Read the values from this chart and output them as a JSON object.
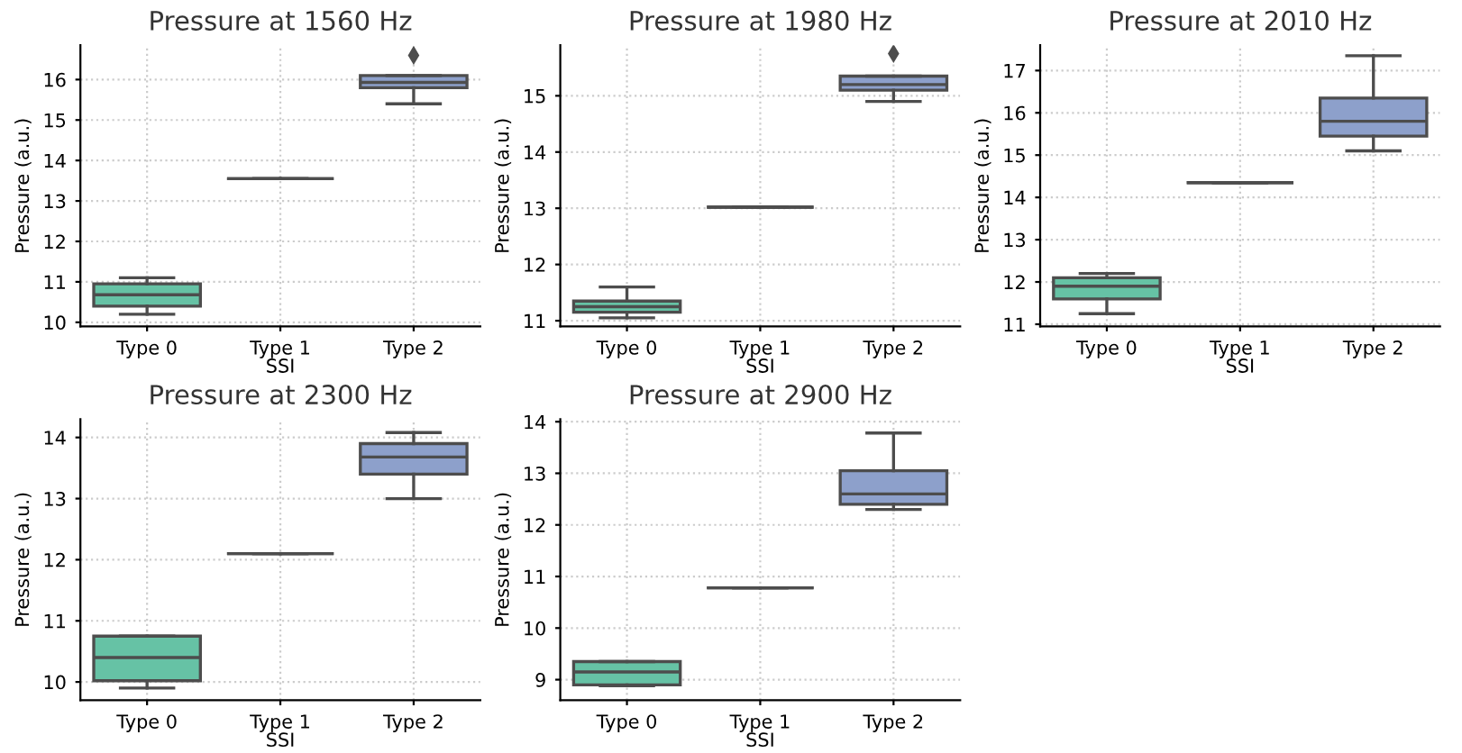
{
  "chart_data": [
    {
      "type": "box",
      "title": "Pressure at 1560 Hz",
      "xlabel": "SSI",
      "ylabel": "Pressure (a.u.)",
      "categories": [
        "Type 0",
        "Type 1",
        "Type 2"
      ],
      "colors": [
        "#66c2a5",
        null,
        "#8da0cb"
      ],
      "ylim": [
        9.9,
        16.85
      ],
      "yticks": [
        10,
        11,
        12,
        13,
        14,
        15,
        16
      ],
      "grid": true,
      "boxes": [
        {
          "low": 10.2,
          "q1": 10.4,
          "median": 10.68,
          "q3": 10.95,
          "high": 11.1
        },
        {
          "low": 13.55,
          "q1": 13.55,
          "median": 13.55,
          "q3": 13.55,
          "high": 13.55
        },
        {
          "low": 15.4,
          "q1": 15.8,
          "median": 15.93,
          "q3": 16.1,
          "high": 16.1,
          "outliers": [
            16.6
          ]
        }
      ]
    },
    {
      "type": "box",
      "title": "Pressure at 1980 Hz",
      "xlabel": "SSI",
      "ylabel": "Pressure (a.u.)",
      "categories": [
        "Type 0",
        "Type 1",
        "Type 2"
      ],
      "colors": [
        "#66c2a5",
        null,
        "#8da0cb"
      ],
      "ylim": [
        10.9,
        15.9
      ],
      "yticks": [
        11,
        12,
        13,
        14,
        15
      ],
      "grid": true,
      "boxes": [
        {
          "low": 11.05,
          "q1": 11.15,
          "median": 11.25,
          "q3": 11.35,
          "high": 11.6
        },
        {
          "low": 13.02,
          "q1": 13.02,
          "median": 13.02,
          "q3": 13.02,
          "high": 13.02
        },
        {
          "low": 14.9,
          "q1": 15.1,
          "median": 15.2,
          "q3": 15.35,
          "high": 15.35,
          "outliers": [
            15.75
          ]
        }
      ]
    },
    {
      "type": "box",
      "title": "Pressure at 2010 Hz",
      "xlabel": "SSI",
      "ylabel": "Pressure (a.u.)",
      "categories": [
        "Type 0",
        "Type 1",
        "Type 2"
      ],
      "colors": [
        "#66c2a5",
        null,
        "#8da0cb"
      ],
      "ylim": [
        10.95,
        17.6
      ],
      "yticks": [
        11,
        12,
        13,
        14,
        15,
        16,
        17
      ],
      "grid": true,
      "boxes": [
        {
          "low": 11.25,
          "q1": 11.6,
          "median": 11.9,
          "q3": 12.1,
          "high": 12.2
        },
        {
          "low": 14.35,
          "q1": 14.35,
          "median": 14.35,
          "q3": 14.35,
          "high": 14.35
        },
        {
          "low": 15.1,
          "q1": 15.45,
          "median": 15.8,
          "q3": 16.35,
          "high": 17.35
        }
      ]
    },
    {
      "type": "box",
      "title": "Pressure at 2300 Hz",
      "xlabel": "SSI",
      "ylabel": "Pressure (a.u.)",
      "categories": [
        "Type 0",
        "Type 1",
        "Type 2"
      ],
      "colors": [
        "#66c2a5",
        null,
        "#8da0cb"
      ],
      "ylim": [
        9.7,
        14.3
      ],
      "yticks": [
        10,
        11,
        12,
        13,
        14
      ],
      "grid": true,
      "boxes": [
        {
          "low": 9.9,
          "q1": 10.02,
          "median": 10.4,
          "q3": 10.75,
          "high": 10.75
        },
        {
          "low": 12.1,
          "q1": 12.1,
          "median": 12.1,
          "q3": 12.1,
          "high": 12.1
        },
        {
          "low": 13.0,
          "q1": 13.4,
          "median": 13.68,
          "q3": 13.9,
          "high": 14.08
        }
      ]
    },
    {
      "type": "box",
      "title": "Pressure at 2900 Hz",
      "xlabel": "SSI",
      "ylabel": "Pressure (a.u.)",
      "categories": [
        "Type 0",
        "Type 1",
        "Type 2"
      ],
      "colors": [
        "#66c2a5",
        null,
        "#8da0cb"
      ],
      "ylim": [
        8.6,
        14.05
      ],
      "yticks": [
        9,
        10,
        11,
        12,
        13,
        14
      ],
      "grid": true,
      "boxes": [
        {
          "low": 8.88,
          "q1": 8.9,
          "median": 9.15,
          "q3": 9.35,
          "high": 9.35
        },
        {
          "low": 10.78,
          "q1": 10.78,
          "median": 10.78,
          "q3": 10.78,
          "high": 10.78
        },
        {
          "low": 12.3,
          "q1": 12.4,
          "median": 12.6,
          "q3": 13.05,
          "high": 13.78
        }
      ]
    }
  ]
}
